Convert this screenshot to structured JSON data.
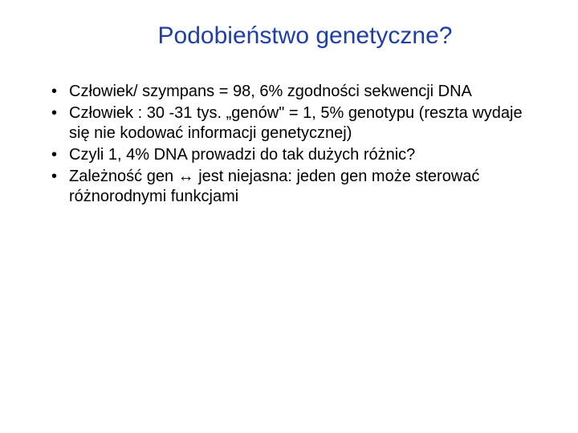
{
  "slide": {
    "title": "Podobieństwo genetyczne?",
    "title_color": "#1f3fa6",
    "bullet_color": "#000000",
    "bullets": [
      "Człowiek/ szympans  = 98, 6% zgodności sekwencji DNA",
      "Człowiek : 30 -31 tys. „genów\" = 1, 5% genotypu (reszta wydaje się nie kodować informacji genetycznej)",
      "Czyli 1, 4% DNA prowadzi do tak dużych różnic?",
      "Zależność gen ↔ jest niejasna: jeden gen może sterować różnorodnymi funkcjami"
    ],
    "background_color": "#ffffff",
    "title_fontsize": 30,
    "body_fontsize": 20
  }
}
